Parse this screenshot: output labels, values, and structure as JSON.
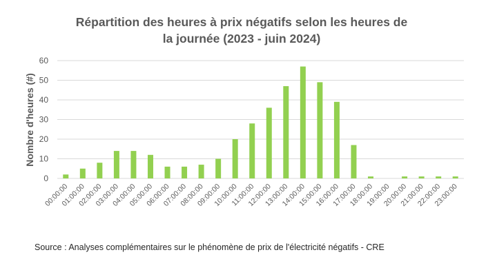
{
  "title_line1": "Répartition des heures à prix négatifs selon les heures de",
  "title_line2": "la journée (2023 - juin 2024)",
  "source": "Source : Analyses complémentaires sur le phénomène de prix de l'électricité négatifs - CRE",
  "colors": {
    "bar": "#92D050",
    "grid": "#D9D9D9",
    "text": "#595959"
  },
  "chart_data": {
    "type": "bar",
    "title": "Répartition des heures à prix négatifs selon les heures de la journée (2023 - juin 2024)",
    "xlabel": "",
    "ylabel": "Nombre d'heures (#)",
    "ylim": [
      0,
      60
    ],
    "yticks": [
      0,
      10,
      20,
      30,
      40,
      50,
      60
    ],
    "grid": true,
    "categories": [
      "00:00:00",
      "01:00:00",
      "02:00:00",
      "03:00:00",
      "04:00:00",
      "05:00:00",
      "06:00:00",
      "07:00:00",
      "08:00:00",
      "09:00:00",
      "10:00:00",
      "11:00:00",
      "12:00:00",
      "13:00:00",
      "14:00:00",
      "15:00:00",
      "16:00:00",
      "17:00:00",
      "18:00:00",
      "19:00:00",
      "20:00:00",
      "21:00:00",
      "22:00:00",
      "23:00:00"
    ],
    "values": [
      2,
      5,
      8,
      14,
      14,
      12,
      6,
      6,
      7,
      10,
      20,
      28,
      36,
      47,
      57,
      49,
      39,
      17,
      1,
      0,
      1,
      1,
      1,
      1
    ]
  }
}
